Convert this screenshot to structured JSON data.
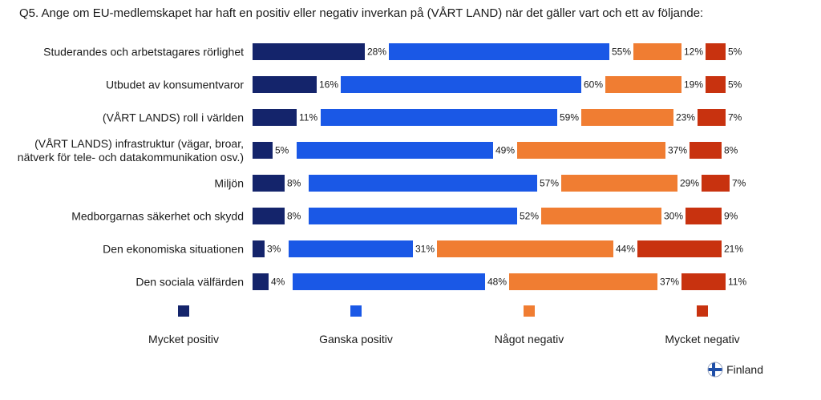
{
  "question": "Q5. Ange om EU-medlemskapet har haft en positiv eller negativ inverkan på (VÅRT LAND) när det gäller vart och ett av följande:",
  "country": "Finland",
  "chart_data": {
    "type": "bar",
    "stacked": true,
    "categories": [
      [
        "Studerandes och arbetstagares rörlighet"
      ],
      [
        "Utbudet av konsumentvaror"
      ],
      [
        "(VÅRT LANDS) roll i världen"
      ],
      [
        "(VÅRT LANDS) infrastruktur (vägar, broar,",
        "nätverk för tele- och datakommunikation osv.)"
      ],
      [
        "Miljön"
      ],
      [
        "Medborgarnas säkerhet och skydd"
      ],
      [
        "Den ekonomiska situationen"
      ],
      [
        "Den sociala välfärden"
      ]
    ],
    "series": [
      {
        "name": "Mycket positiv",
        "color": "#14246b",
        "values": [
          28,
          16,
          11,
          5,
          8,
          8,
          3,
          4
        ]
      },
      {
        "name": "Ganska positiv",
        "color": "#1a58e6",
        "values": [
          55,
          60,
          59,
          49,
          57,
          52,
          31,
          48
        ]
      },
      {
        "name": "Något negativ",
        "color": "#f07d32",
        "values": [
          12,
          19,
          23,
          37,
          29,
          30,
          44,
          37
        ]
      },
      {
        "name": "Mycket negativ",
        "color": "#c8320f",
        "values": [
          5,
          5,
          7,
          8,
          7,
          9,
          21,
          11
        ]
      }
    ],
    "value_suffix": "%",
    "legend_position": "bottom"
  }
}
